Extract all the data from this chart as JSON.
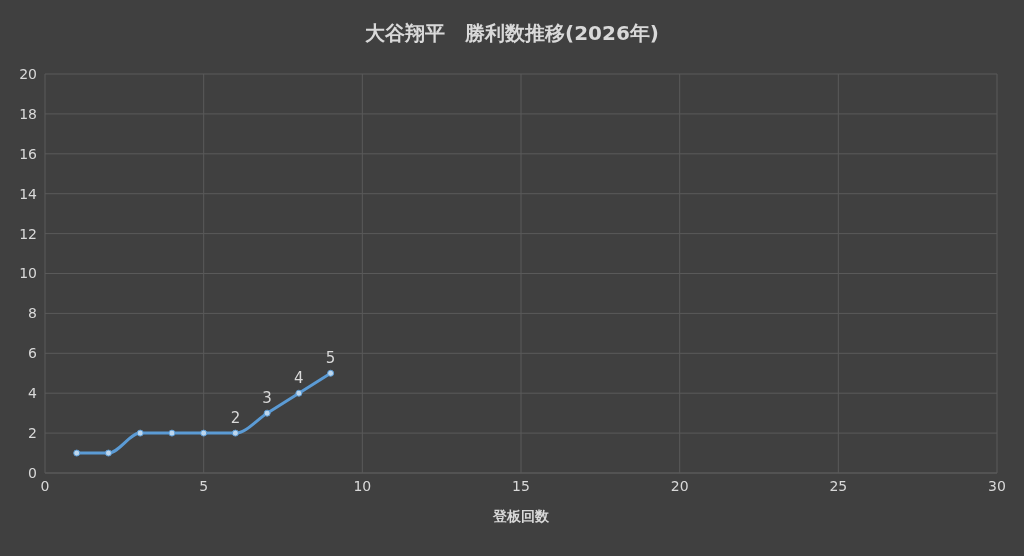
{
  "chart_data": {
    "type": "line",
    "title": "大谷翔平　勝利数推移(2026年)",
    "xlabel": "登板回数",
    "x": [
      1,
      2,
      3,
      4,
      5,
      6,
      7,
      8,
      9
    ],
    "series": [
      {
        "color": "#5b9bd5",
        "values": [
          1,
          1,
          2,
          2,
          2,
          2,
          3,
          4,
          5
        ],
        "value_labels": [
          null,
          null,
          null,
          null,
          null,
          "2",
          "3",
          "4",
          "5"
        ]
      }
    ],
    "xlim": [
      0,
      30
    ],
    "xticks": [
      0,
      5,
      10,
      15,
      20,
      25,
      30
    ],
    "ylim": [
      0,
      20
    ],
    "yticks": [
      0,
      2,
      4,
      6,
      8,
      10,
      12,
      14,
      16,
      18,
      20
    ],
    "grid": true,
    "marker": "circle",
    "line_style": "solid",
    "legend": false
  }
}
